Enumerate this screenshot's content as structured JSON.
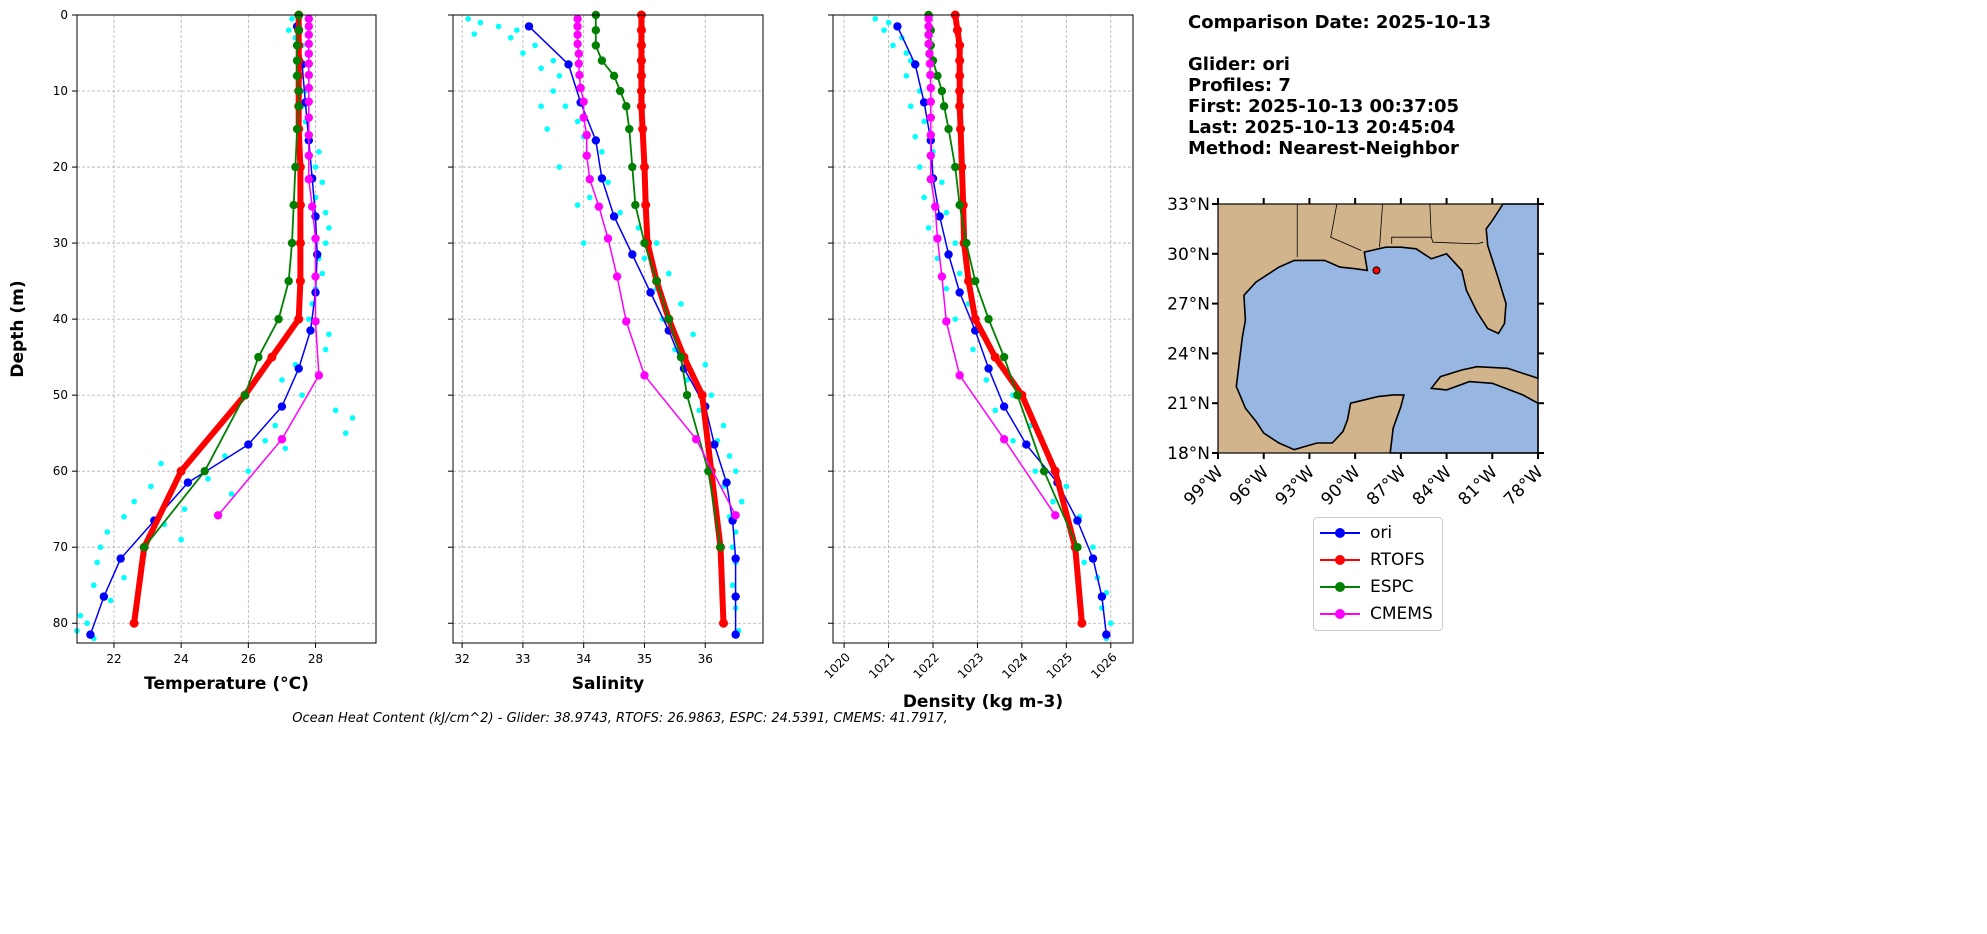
{
  "info": {
    "comparison_date": "Comparison Date: 2025-10-13",
    "glider": "Glider: ori",
    "profiles": "Profiles: 7",
    "first": "First: 2025-10-13 00:37:05",
    "last": "Last: 2025-10-13 20:45:04",
    "method": "Method: Nearest-Neighbor"
  },
  "footer": "Ocean Heat Content (kJ/cm^2) - Glider: 38.9743,  RTOFS: 26.9863,  ESPC: 24.5391,  CMEMS: 41.7917,",
  "colors": {
    "raw": "#00ffff",
    "land": "#d2b48c",
    "water": "#97b6e1"
  },
  "map": {
    "lon_range": [
      -99,
      -78
    ],
    "lat_range": [
      18,
      33
    ],
    "lon_ticks": [
      -99,
      -96,
      -93,
      -90,
      -87,
      -84,
      -81,
      -78
    ],
    "lon_labels": [
      "99°W",
      "96°W",
      "93°W",
      "90°W",
      "87°W",
      "84°W",
      "81°W",
      "78°W"
    ],
    "lat_ticks": [
      33,
      30,
      27,
      24,
      21,
      18
    ],
    "lat_labels": [
      "33°N",
      "30°N",
      "27°N",
      "24°N",
      "21°N",
      "18°N"
    ],
    "glider_position": {
      "lon": -88.6,
      "lat": 29.0
    }
  },
  "chart_data": {
    "type": "line",
    "ylabel": "Depth (m)",
    "ylim": [
      82.6,
      0
    ],
    "yticks": [
      0,
      10,
      20,
      30,
      40,
      50,
      60,
      70,
      80
    ],
    "grid": true,
    "legend_placement": "right",
    "panels": [
      {
        "key": "temperature",
        "xlabel": "Temperature (°C)",
        "xlim": [
          20.9,
          29.8
        ],
        "xticks": [
          22,
          24,
          26,
          28
        ],
        "rotate_ticks": false
      },
      {
        "key": "salinity",
        "xlabel": "Salinity",
        "xlim": [
          31.85,
          36.95
        ],
        "xticks": [
          32,
          33,
          34,
          35,
          36
        ],
        "rotate_ticks": false
      },
      {
        "key": "density",
        "xlabel": "Density (kg m-3)",
        "xlim": [
          1019.75,
          1026.5
        ],
        "xticks": [
          1020,
          1021,
          1022,
          1023,
          1024,
          1025,
          1026
        ],
        "rotate_ticks": true
      }
    ],
    "series": [
      {
        "name": "ori",
        "color": "#0000ff",
        "width": 1.5,
        "depth": [
          1.5,
          6.5,
          11.5,
          16.5,
          21.5,
          26.5,
          31.5,
          36.5,
          41.5,
          46.5,
          51.5,
          56.5,
          61.5,
          66.5,
          71.5,
          76.5,
          81.5
        ],
        "temperature": [
          27.45,
          27.6,
          27.7,
          27.8,
          27.9,
          28.0,
          28.05,
          28.0,
          27.85,
          27.5,
          27.0,
          26.0,
          24.2,
          23.2,
          22.2,
          21.7,
          21.3
        ],
        "salinity": [
          33.1,
          33.75,
          33.95,
          34.2,
          34.3,
          34.5,
          34.8,
          35.1,
          35.4,
          35.65,
          36.0,
          36.15,
          36.35,
          36.45,
          36.5,
          36.5,
          36.5
        ],
        "density": [
          1021.2,
          1021.6,
          1021.8,
          1021.95,
          1022.0,
          1022.15,
          1022.35,
          1022.6,
          1022.95,
          1023.25,
          1023.6,
          1024.1,
          1024.8,
          1025.25,
          1025.6,
          1025.8,
          1025.9
        ]
      },
      {
        "name": "RTOFS",
        "color": "#ff0000",
        "width": 6,
        "depth": [
          0,
          2,
          4,
          6,
          8,
          10,
          12,
          15,
          20,
          25,
          30,
          35,
          40,
          45,
          50,
          60,
          70,
          80
        ],
        "temperature": [
          27.5,
          27.5,
          27.5,
          27.5,
          27.5,
          27.5,
          27.5,
          27.5,
          27.55,
          27.55,
          27.55,
          27.55,
          27.5,
          26.7,
          25.9,
          24.0,
          22.9,
          22.6
        ],
        "salinity": [
          34.95,
          34.95,
          34.95,
          34.95,
          34.95,
          34.95,
          34.95,
          34.97,
          35.0,
          35.02,
          35.05,
          35.2,
          35.4,
          35.65,
          35.95,
          36.1,
          36.25,
          36.3
        ],
        "density": [
          1022.5,
          1022.55,
          1022.6,
          1022.6,
          1022.6,
          1022.6,
          1022.6,
          1022.62,
          1022.65,
          1022.68,
          1022.7,
          1022.8,
          1022.95,
          1023.4,
          1024.0,
          1024.75,
          1025.2,
          1025.35
        ]
      },
      {
        "name": "ESPC",
        "color": "#008000",
        "width": 1.8,
        "depth": [
          0,
          2,
          4,
          6,
          8,
          10,
          12,
          15,
          20,
          25,
          30,
          35,
          40,
          45,
          50,
          60,
          70
        ],
        "temperature": [
          27.5,
          27.5,
          27.45,
          27.45,
          27.45,
          27.5,
          27.5,
          27.45,
          27.4,
          27.35,
          27.3,
          27.2,
          26.9,
          26.3,
          25.9,
          24.7,
          22.9
        ],
        "salinity": [
          34.2,
          34.2,
          34.2,
          34.3,
          34.5,
          34.6,
          34.7,
          34.75,
          34.8,
          34.85,
          35.0,
          35.2,
          35.4,
          35.6,
          35.7,
          36.05,
          36.25
        ],
        "density": [
          1021.9,
          1021.95,
          1021.95,
          1022.0,
          1022.1,
          1022.2,
          1022.25,
          1022.35,
          1022.5,
          1022.6,
          1022.75,
          1022.95,
          1023.25,
          1023.6,
          1023.9,
          1024.5,
          1025.25
        ]
      },
      {
        "name": "CMEMS",
        "color": "#ff00ff",
        "width": 1.5,
        "depth": [
          0.5,
          1.5,
          2.6,
          3.8,
          5.1,
          6.4,
          7.9,
          9.6,
          11.4,
          13.5,
          15.8,
          18.5,
          21.6,
          25.2,
          29.4,
          34.4,
          40.3,
          47.4,
          55.8,
          65.8
        ],
        "temperature": [
          27.8,
          27.8,
          27.8,
          27.8,
          27.8,
          27.8,
          27.8,
          27.8,
          27.8,
          27.8,
          27.8,
          27.8,
          27.8,
          27.9,
          28.0,
          28.0,
          28.0,
          28.1,
          27.0,
          25.1
        ],
        "salinity": [
          33.9,
          33.9,
          33.9,
          33.9,
          33.92,
          33.92,
          33.93,
          33.95,
          34.0,
          34.0,
          34.05,
          34.05,
          34.1,
          34.25,
          34.4,
          34.55,
          34.7,
          35.0,
          35.85,
          36.5
        ],
        "density": [
          1021.9,
          1021.9,
          1021.9,
          1021.9,
          1021.92,
          1021.93,
          1021.94,
          1021.95,
          1021.95,
          1021.95,
          1021.95,
          1021.95,
          1021.95,
          1022.05,
          1022.1,
          1022.2,
          1022.3,
          1022.6,
          1023.6,
          1024.75
        ]
      }
    ],
    "raw_glider": {
      "temperature": [
        [
          0.5,
          27.3
        ],
        [
          1,
          27.5
        ],
        [
          2,
          27.2
        ],
        [
          3,
          27.4
        ],
        [
          4,
          27.6
        ],
        [
          6,
          27.5
        ],
        [
          8,
          27.4
        ],
        [
          10,
          27.7
        ],
        [
          12,
          27.6
        ],
        [
          14,
          27.7
        ],
        [
          16,
          27.8
        ],
        [
          18,
          28.1
        ],
        [
          20,
          28.0
        ],
        [
          22,
          28.2
        ],
        [
          24,
          28.0
        ],
        [
          26,
          28.3
        ],
        [
          28,
          28.4
        ],
        [
          30,
          28.3
        ],
        [
          32,
          28.1
        ],
        [
          34,
          28.2
        ],
        [
          36,
          28.0
        ],
        [
          38,
          27.9
        ],
        [
          40,
          27.8
        ],
        [
          42,
          28.4
        ],
        [
          44,
          28.3
        ],
        [
          46,
          27.4
        ],
        [
          48,
          27.0
        ],
        [
          50,
          27.6
        ],
        [
          52,
          28.6
        ],
        [
          53,
          29.1
        ],
        [
          54,
          26.8
        ],
        [
          55,
          28.9
        ],
        [
          56,
          26.5
        ],
        [
          57,
          27.1
        ],
        [
          58,
          25.3
        ],
        [
          59,
          23.4
        ],
        [
          60,
          26.0
        ],
        [
          61,
          24.8
        ],
        [
          62,
          23.1
        ],
        [
          63,
          25.5
        ],
        [
          64,
          22.6
        ],
        [
          65,
          24.1
        ],
        [
          66,
          22.3
        ],
        [
          67,
          23.5
        ],
        [
          68,
          21.8
        ],
        [
          69,
          24.0
        ],
        [
          70,
          21.6
        ],
        [
          71,
          22.9
        ],
        [
          72,
          21.5
        ],
        [
          74,
          22.3
        ],
        [
          75,
          21.4
        ],
        [
          77,
          21.9
        ],
        [
          79,
          21.0
        ],
        [
          80,
          21.2
        ],
        [
          81,
          20.9
        ],
        [
          82,
          21.4
        ]
      ],
      "salinity": [
        [
          0.5,
          32.1
        ],
        [
          1,
          32.3
        ],
        [
          1.5,
          32.6
        ],
        [
          2,
          32.9
        ],
        [
          2.5,
          32.2
        ],
        [
          3,
          32.8
        ],
        [
          4,
          33.2
        ],
        [
          5,
          33.0
        ],
        [
          6,
          33.5
        ],
        [
          7,
          33.3
        ],
        [
          8,
          33.6
        ],
        [
          10,
          33.5
        ],
        [
          12,
          33.3
        ],
        [
          12,
          33.7
        ],
        [
          14,
          33.9
        ],
        [
          15,
          33.4
        ],
        [
          16,
          34.0
        ],
        [
          18,
          34.3
        ],
        [
          20,
          33.6
        ],
        [
          22,
          34.4
        ],
        [
          24,
          34.1
        ],
        [
          25,
          33.9
        ],
        [
          26,
          34.6
        ],
        [
          28,
          34.9
        ],
        [
          30,
          35.2
        ],
        [
          30,
          34.0
        ],
        [
          32,
          35.0
        ],
        [
          34,
          35.4
        ],
        [
          36,
          35.2
        ],
        [
          38,
          35.6
        ],
        [
          40,
          35.3
        ],
        [
          42,
          35.8
        ],
        [
          44,
          35.5
        ],
        [
          46,
          36.0
        ],
        [
          48,
          35.7
        ],
        [
          50,
          36.1
        ],
        [
          52,
          35.9
        ],
        [
          54,
          36.3
        ],
        [
          56,
          36.2
        ],
        [
          58,
          36.4
        ],
        [
          60,
          36.5
        ],
        [
          62,
          36.3
        ],
        [
          64,
          36.6
        ],
        [
          66,
          36.4
        ],
        [
          68,
          36.5
        ],
        [
          70,
          36.45
        ],
        [
          72,
          36.5
        ],
        [
          75,
          36.45
        ],
        [
          78,
          36.5
        ],
        [
          81,
          36.55
        ]
      ],
      "density": [
        [
          0.5,
          1020.7
        ],
        [
          1,
          1021.0
        ],
        [
          2,
          1020.9
        ],
        [
          3,
          1021.3
        ],
        [
          4,
          1021.1
        ],
        [
          5,
          1021.4
        ],
        [
          6,
          1021.5
        ],
        [
          8,
          1021.4
        ],
        [
          10,
          1021.7
        ],
        [
          12,
          1021.5
        ],
        [
          14,
          1021.8
        ],
        [
          16,
          1021.6
        ],
        [
          18,
          1022.0
        ],
        [
          20,
          1021.7
        ],
        [
          22,
          1022.2
        ],
        [
          24,
          1021.8
        ],
        [
          26,
          1022.3
        ],
        [
          28,
          1021.9
        ],
        [
          30,
          1022.5
        ],
        [
          32,
          1022.1
        ],
        [
          34,
          1022.6
        ],
        [
          36,
          1022.3
        ],
        [
          38,
          1022.8
        ],
        [
          40,
          1022.5
        ],
        [
          42,
          1023.1
        ],
        [
          44,
          1022.9
        ],
        [
          46,
          1023.5
        ],
        [
          48,
          1023.2
        ],
        [
          50,
          1023.8
        ],
        [
          52,
          1023.4
        ],
        [
          54,
          1024.2
        ],
        [
          56,
          1023.8
        ],
        [
          58,
          1024.6
        ],
        [
          60,
          1024.3
        ],
        [
          62,
          1025.0
        ],
        [
          64,
          1024.7
        ],
        [
          66,
          1025.3
        ],
        [
          68,
          1025.1
        ],
        [
          70,
          1025.6
        ],
        [
          72,
          1025.4
        ],
        [
          74,
          1025.7
        ],
        [
          76,
          1025.9
        ],
        [
          78,
          1025.8
        ],
        [
          80,
          1026.0
        ],
        [
          82,
          1025.9
        ]
      ]
    }
  }
}
